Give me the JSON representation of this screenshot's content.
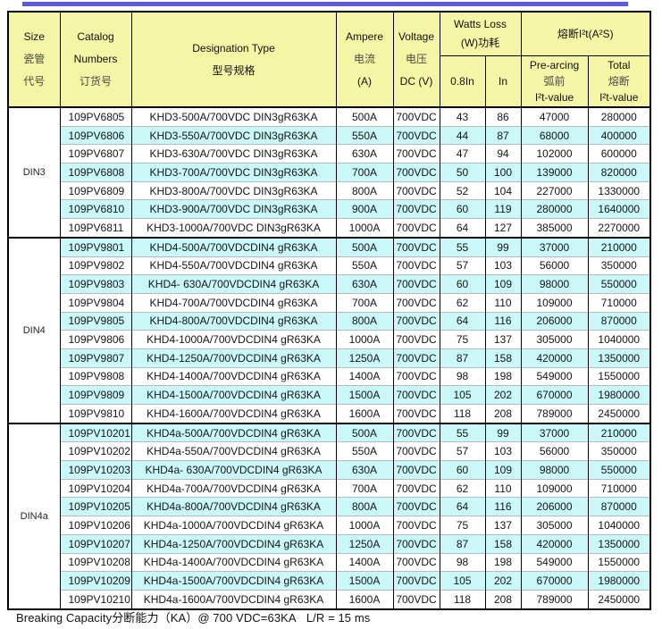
{
  "colors": {
    "top_bar": "#5B5BDB",
    "header_bg": "#F5F5A6",
    "row_alt_bg": "#CAF7F7",
    "border": "#000000"
  },
  "header": {
    "size": {
      "l1": "Size",
      "l2": "瓷管",
      "l3": "代号"
    },
    "catalog": {
      "l1": "Catalog",
      "l2": "Numbers",
      "l3": "订货号"
    },
    "designation": {
      "l1": "Designation Type",
      "l2": "型号规格"
    },
    "ampere": {
      "l1": "Ampere",
      "l2": "电流",
      "l3": "(A)"
    },
    "voltage": {
      "l1": "Voltage",
      "l2": "电压",
      "l3": "DC (V)"
    },
    "watts_loss": {
      "l1": "Watts Loss",
      "l2": "(W)功耗",
      "sub_08in": "0.8In",
      "sub_in": "In"
    },
    "i2t": {
      "group": "熔断I²t(A²S)",
      "prearcing": {
        "l1": "Pre-arcing",
        "l2": "弧前",
        "l3": "I²t-value"
      },
      "total": {
        "l1": "Total",
        "l2": "熔断",
        "l3": "I²t-value"
      }
    }
  },
  "sections": [
    {
      "size": "DIN3",
      "rows": [
        [
          "109PV6805",
          "KHD3-500A/700VDC DIN3gR63KA",
          "500A",
          "700VDC",
          "43",
          "86",
          "47000",
          "280000"
        ],
        [
          "109PV6806",
          "KHD3-550A/700VDC DIN3gR63KA",
          "550A",
          "700VDC",
          "44",
          "87",
          "68000",
          "400000"
        ],
        [
          "109PV6807",
          "KHD3-630A/700VDC DIN3gR63KA",
          "630A",
          "700VDC",
          "47",
          "94",
          "102000",
          "600000"
        ],
        [
          "109PV6808",
          "KHD3-700A/700VDC DIN3gR63KA",
          "700A",
          "700VDC",
          "50",
          "100",
          "139000",
          "820000"
        ],
        [
          "109PV6809",
          "KHD3-800A/700VDC DIN3gR63KA",
          "800A",
          "700VDC",
          "52",
          "104",
          "227000",
          "1330000"
        ],
        [
          "109PV6810",
          "KHD3-900A/700VDC DIN3gR63KA",
          "900A",
          "700VDC",
          "60",
          "119",
          "280000",
          "1640000"
        ],
        [
          "109PV6811",
          "KHD3-1000A/700VDC DIN3gR63KA",
          "1000A",
          "700VDC",
          "64",
          "127",
          "385000",
          "2270000"
        ]
      ]
    },
    {
      "size": "DIN4",
      "rows": [
        [
          "109PV9801",
          "KHD4-500A/700VDCDIN4 gR63KA",
          "500A",
          "700VDC",
          "55",
          "99",
          "37000",
          "210000"
        ],
        [
          "109PV9802",
          "KHD4-550A/700VDCDIN4 gR63KA",
          "550A",
          "700VDC",
          "57",
          "103",
          "56000",
          "350000"
        ],
        [
          "109PV9803",
          "KHD4- 630A/700VDCDIN4 gR63KA",
          "630A",
          "700VDC",
          "60",
          "109",
          "98000",
          "550000"
        ],
        [
          "109PV9804",
          "KHD4-700A/700VDCDIN4 gR63KA",
          "700A",
          "700VDC",
          "62",
          "110",
          "109000",
          "710000"
        ],
        [
          "109PV9805",
          "KHD4-800A/700VDCDIN4 gR63KA",
          "800A",
          "700VDC",
          "64",
          "116",
          "206000",
          "870000"
        ],
        [
          "109PV9806",
          "KHD4-1000A/700VDCDIN4 gR63KA",
          "1000A",
          "700VDC",
          "75",
          "137",
          "305000",
          "1040000"
        ],
        [
          "109PV9807",
          "KHD4-1250A/700VDCDIN4 gR63KA",
          "1250A",
          "700VDC",
          "87",
          "158",
          "420000",
          "1350000"
        ],
        [
          "109PV9808",
          "KHD4-1400A/700VDCDIN4 gR63KA",
          "1400A",
          "700VDC",
          "98",
          "198",
          "549000",
          "1550000"
        ],
        [
          "109PV9809",
          "KHD4-1500A/700VDCDIN4 gR63KA",
          "1500A",
          "700VDC",
          "105",
          "202",
          "670000",
          "1980000"
        ],
        [
          "109PV9810",
          "KHD4-1600A/700VDCDIN4 gR63KA",
          "1600A",
          "700VDC",
          "118",
          "208",
          "789000",
          "2450000"
        ]
      ]
    },
    {
      "size": "DIN4a",
      "rows": [
        [
          "109PV10201",
          "KHD4a-500A/700VDCDIN4 gR63KA",
          "500A",
          "700VDC",
          "55",
          "99",
          "37000",
          "210000"
        ],
        [
          "109PV10202",
          "KHD4a-550A/700VDCDIN4 gR63KA",
          "550A",
          "700VDC",
          "57",
          "103",
          "56000",
          "350000"
        ],
        [
          "109PV10203",
          "KHD4a- 630A/700VDCDIN4 gR63KA",
          "630A",
          "700VDC",
          "60",
          "109",
          "98000",
          "550000"
        ],
        [
          "109PV10204",
          "KHD4a-700A/700VDCDIN4 gR63KA",
          "700A",
          "700VDC",
          "62",
          "110",
          "109000",
          "710000"
        ],
        [
          "109PV10205",
          "KHD4a-800A/700VDCDIN4 gR63KA",
          "800A",
          "700VDC",
          "64",
          "116",
          "206000",
          "870000"
        ],
        [
          "109PV10206",
          "KHD4a-1000A/700VDCDIN4 gR63KA",
          "1000A",
          "700VDC",
          "75",
          "137",
          "305000",
          "1040000"
        ],
        [
          "109PV10207",
          "KHD4a-1250A/700VDCDIN4 gR63KA",
          "1250A",
          "700VDC",
          "87",
          "158",
          "420000",
          "1350000"
        ],
        [
          "109PV10208",
          "KHD4a-1400A/700VDCDIN4 gR63KA",
          "1400A",
          "700VDC",
          "98",
          "198",
          "549000",
          "1550000"
        ],
        [
          "109PV10209",
          "KHD4a-1500A/700VDCDIN4 gR63KA",
          "1500A",
          "700VDC",
          "105",
          "202",
          "670000",
          "1980000"
        ],
        [
          "109PV10210",
          "KHD4a-1600A/700VDCDIN4 gR63KA",
          "1600A",
          "700VDC",
          "118",
          "208",
          "789000",
          "2450000"
        ]
      ]
    }
  ],
  "footnote": "Breaking Capacity分断能力（KA）@ 700 VDC=63KA   L/R = 15 ms"
}
